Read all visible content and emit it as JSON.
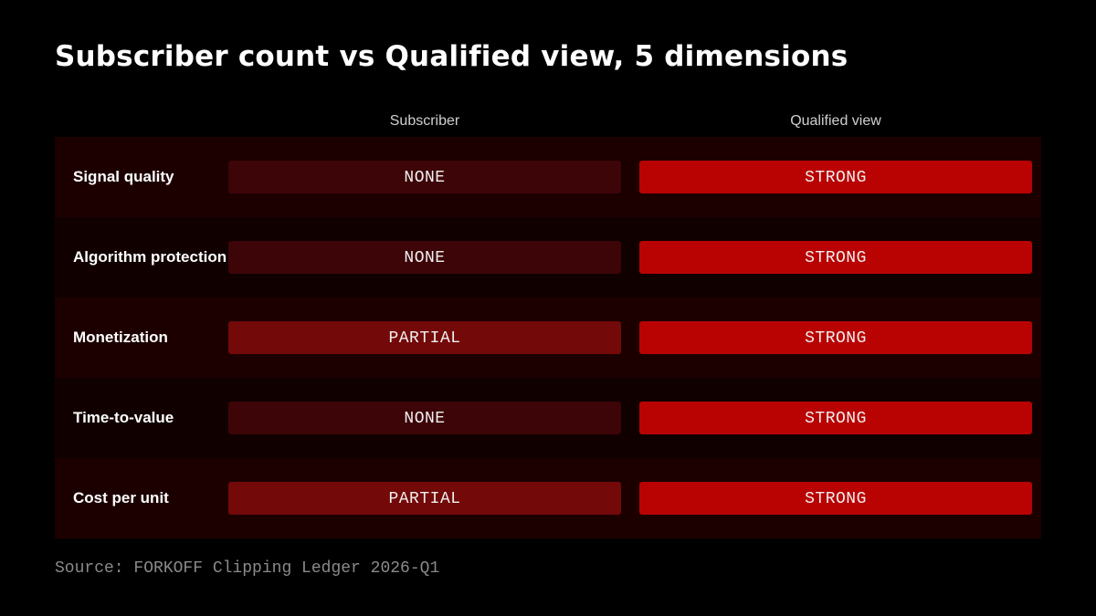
{
  "chart_data": {
    "type": "table",
    "title": "Subscriber count vs Qualified view, 5 dimensions",
    "columns": [
      "Subscriber",
      "Qualified view"
    ],
    "rows": [
      {
        "label": "Signal quality",
        "values": [
          "NONE",
          "STRONG"
        ]
      },
      {
        "label": "Algorithm protection",
        "values": [
          "NONE",
          "STRONG"
        ]
      },
      {
        "label": "Monetization",
        "values": [
          "PARTIAL",
          "STRONG"
        ]
      },
      {
        "label": "Time-to-value",
        "values": [
          "NONE",
          "STRONG"
        ]
      },
      {
        "label": "Cost per unit",
        "values": [
          "PARTIAL",
          "STRONG"
        ]
      }
    ],
    "level_colors": {
      "NONE": "#3d0508",
      "PARTIAL": "#730909",
      "STRONG": "#b90303"
    },
    "source": "Source: FORKOFF Clipping Ledger 2026-Q1"
  }
}
